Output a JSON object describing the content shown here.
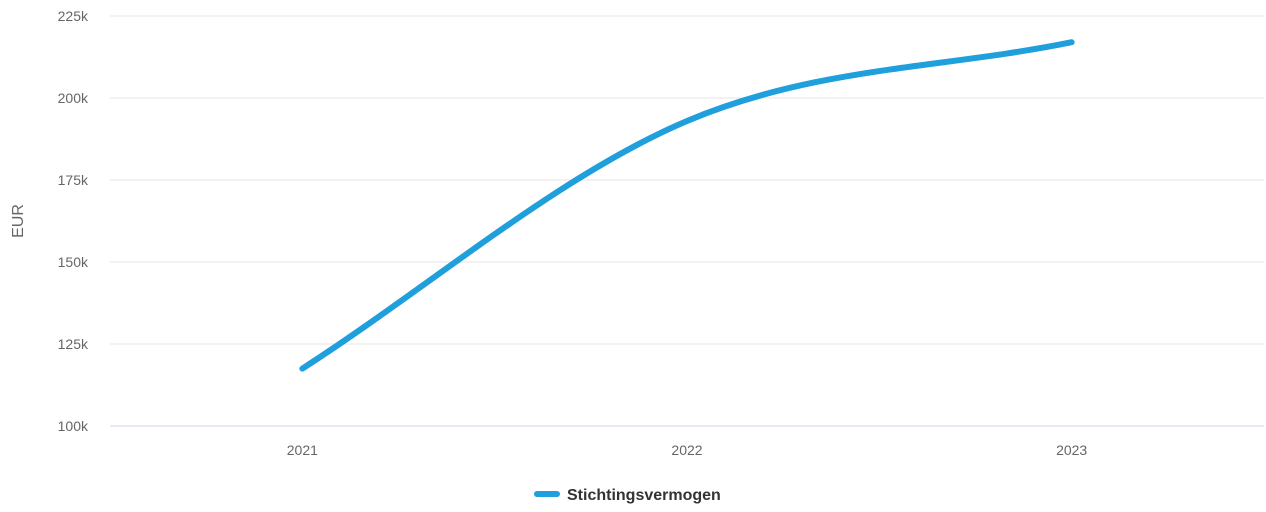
{
  "chart_data": {
    "type": "line",
    "categories": [
      "2021",
      "2022",
      "2023"
    ],
    "series": [
      {
        "name": "Stichtingsvermogen",
        "values": [
          117500,
          193000,
          217000
        ]
      }
    ],
    "ylabel": "EUR",
    "xlabel": "",
    "ylim": [
      100000,
      225000
    ],
    "yticks": [
      100000,
      125000,
      150000,
      175000,
      200000,
      225000
    ],
    "ytick_labels": [
      "100k",
      "125k",
      "150k",
      "175k",
      "200k",
      "225k"
    ],
    "grid": true,
    "legend_position": "bottom-center",
    "series_color": "#1f9fdb"
  }
}
